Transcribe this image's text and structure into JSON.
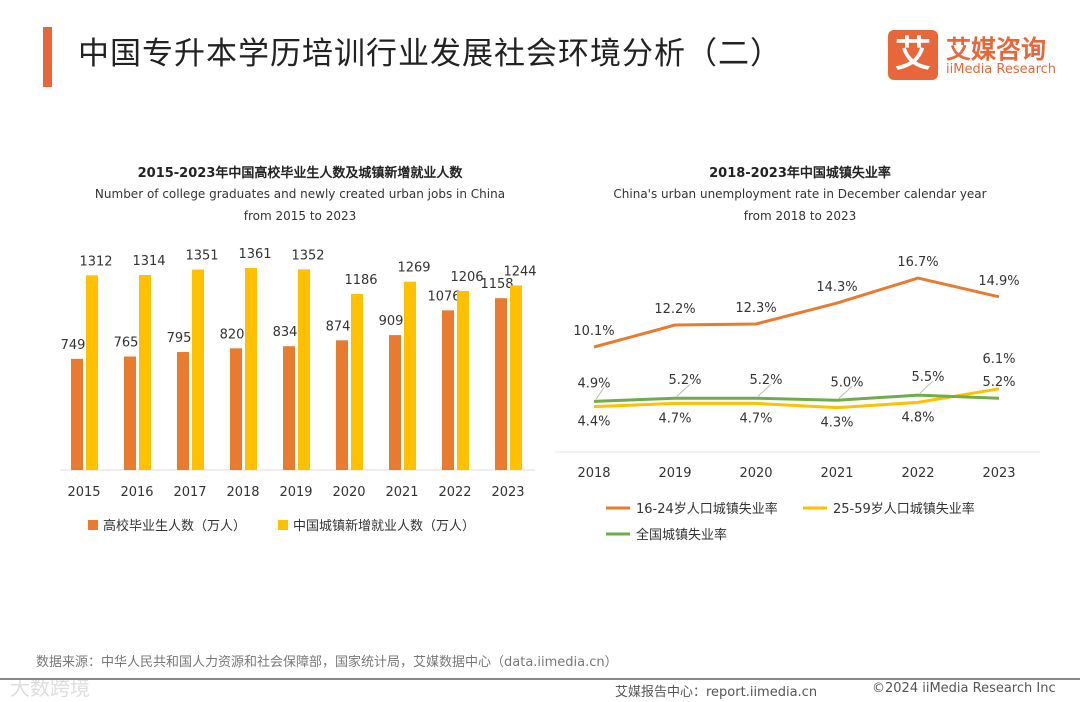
{
  "header": {
    "title": "中国专升本学历培训行业发展社会环境分析（二）",
    "logo_cn": "艾媒咨询",
    "logo_en": "iiMedia Research",
    "logo_mark": "艾"
  },
  "colors": {
    "accent": "#E8673A",
    "orange": "#E87B2F",
    "yellow": "#FFC000",
    "green": "#70AD47"
  },
  "chart_data": [
    {
      "type": "bar",
      "title": "2015-2023年中国高校毕业生人数及城镇新增就业人数",
      "subtitle1": "Number of college graduates and newly created urban jobs in China",
      "subtitle2": "from 2015 to 2023",
      "categories": [
        "2015",
        "2016",
        "2017",
        "2018",
        "2019",
        "2020",
        "2021",
        "2022",
        "2023"
      ],
      "series": [
        {
          "name": "高校毕业生人数（万人）",
          "values": [
            749,
            765,
            795,
            820,
            834,
            874,
            909,
            1076,
            1158
          ]
        },
        {
          "name": "中国城镇新增就业人数（万人）",
          "values": [
            1312,
            1314,
            1351,
            1361,
            1352,
            1186,
            1269,
            1206,
            1244
          ]
        }
      ],
      "ylim": [
        0,
        1550
      ],
      "legend": "bottom"
    },
    {
      "type": "line",
      "title": "2018-2023年中国城镇失业率",
      "subtitle1": "China's urban unemployment rate in December  calendar year",
      "subtitle2": "from 2018 to 2023",
      "categories": [
        "2018",
        "2019",
        "2020",
        "2021",
        "2022",
        "2023"
      ],
      "series": [
        {
          "name": "16-24岁人口城镇失业率",
          "values": [
            10.1,
            12.2,
            12.3,
            14.3,
            16.7,
            14.9
          ]
        },
        {
          "name": "25-59岁人口城镇失业率",
          "values": [
            4.4,
            4.7,
            4.7,
            4.3,
            4.8,
            6.1
          ]
        },
        {
          "name": "全国城镇失业率",
          "values": [
            4.9,
            5.2,
            5.2,
            5.0,
            5.5,
            5.2
          ]
        }
      ],
      "unit": "%",
      "legend": "bottom"
    }
  ],
  "footer": {
    "source": "数据来源：中华人民共和国人力资源和社会保障部，国家统计局，艾媒数据中心（data.iimedia.cn）",
    "report": "艾媒报告中心：report.iimedia.cn",
    "copyright": "©2024  iiMedia Research  Inc",
    "watermark": "大数跨境"
  }
}
